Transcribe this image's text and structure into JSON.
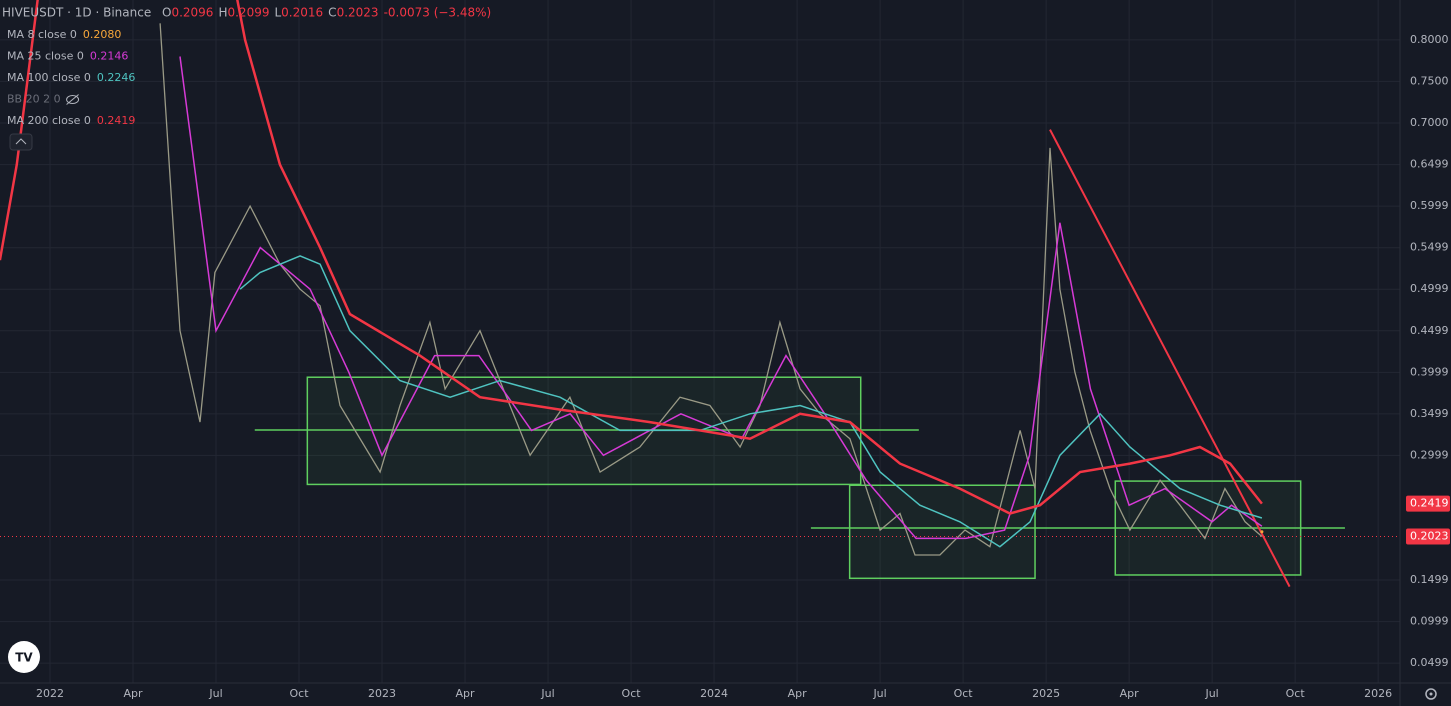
{
  "chart_data": {
    "type": "line",
    "title": "HIVEUSDT · 1D · Binance",
    "ohlc": [
      {
        "label": "O",
        "value": "0.2096"
      },
      {
        "label": "H",
        "value": "0.2099"
      },
      {
        "label": "L",
        "value": "0.2016"
      },
      {
        "label": "C",
        "value": "0.2023"
      }
    ],
    "change": "-0.0073 (−3.48%)",
    "close": 0.2023,
    "close_label": "0.2023",
    "extra_indicator": "BB 20 2 0",
    "price": {
      "color": "#9a9a86",
      "x": [
        3.98,
        4.7,
        5.42,
        5.96,
        7.23,
        8.31,
        9.04,
        9.76,
        10.48,
        11.93,
        12.65,
        13.73,
        14.28,
        15.54,
        16.62,
        17.35,
        18.79,
        19.88,
        21.32,
        22.77,
        23.85,
        24.94,
        25.66,
        26.38,
        27.11,
        27.83,
        28.91,
        30.0,
        30.72,
        31.26,
        32.16,
        33.07,
        33.97,
        35.06,
        35.6,
        36.14,
        36.5,
        37.04,
        37.59,
        38.31,
        39.03,
        40.12,
        40.84,
        41.74,
        42.46,
        43.19,
        43.8
      ],
      "values": [
        0.82,
        0.45,
        0.34,
        0.52,
        0.6,
        0.53,
        0.5,
        0.48,
        0.36,
        0.28,
        0.36,
        0.46,
        0.38,
        0.45,
        0.36,
        0.3,
        0.37,
        0.28,
        0.31,
        0.37,
        0.36,
        0.31,
        0.36,
        0.46,
        0.38,
        0.35,
        0.32,
        0.21,
        0.23,
        0.18,
        0.18,
        0.21,
        0.19,
        0.33,
        0.26,
        0.67,
        0.5,
        0.4,
        0.33,
        0.26,
        0.21,
        0.27,
        0.24,
        0.2,
        0.26,
        0.22,
        0.2023
      ]
    },
    "series": [
      {
        "name": "MA 8 close 0",
        "color": "#f7a73a",
        "last_label": "0.2080",
        "x": [
          43.8
        ],
        "values": [
          0.208
        ]
      },
      {
        "name": "MA 25 close 0",
        "color": "#d63ad6",
        "last_label": "0.2146",
        "x": [
          4.7,
          6.0,
          7.6,
          9.4,
          10.8,
          12.0,
          13.9,
          15.5,
          17.4,
          18.8,
          20.0,
          22.8,
          25.0,
          26.6,
          28.0,
          29.5,
          31.3,
          33.1,
          34.5,
          35.4,
          36.5,
          37.6,
          39.0,
          40.3,
          42.0,
          42.7,
          43.8
        ],
        "values": [
          0.78,
          0.45,
          0.55,
          0.5,
          0.4,
          0.3,
          0.42,
          0.42,
          0.33,
          0.35,
          0.3,
          0.35,
          0.32,
          0.42,
          0.35,
          0.27,
          0.2,
          0.2,
          0.21,
          0.3,
          0.58,
          0.38,
          0.24,
          0.26,
          0.22,
          0.24,
          0.2146
        ]
      },
      {
        "name": "MA 100 close 0",
        "color": "#4fc3c0",
        "last_label": "0.2246",
        "x": [
          6.87,
          7.59,
          9.04,
          9.76,
          10.84,
          12.65,
          14.46,
          16.26,
          18.43,
          20.6,
          23.49,
          25.3,
          27.11,
          28.91,
          30.0,
          31.44,
          32.88,
          34.33,
          35.42,
          36.5,
          37.95,
          39.03,
          40.84,
          42.29,
          43.8
        ],
        "values": [
          0.5,
          0.52,
          0.54,
          0.53,
          0.45,
          0.39,
          0.37,
          0.39,
          0.37,
          0.33,
          0.33,
          0.35,
          0.36,
          0.34,
          0.28,
          0.24,
          0.22,
          0.19,
          0.22,
          0.3,
          0.35,
          0.31,
          0.26,
          0.24,
          0.2246
        ]
      },
      {
        "name": "MA 200 close 0",
        "color": "#f23645",
        "last_label": "0.2419",
        "tag": true,
        "x": [
          -1.81,
          -1.2,
          -0.4,
          3.0,
          6.7,
          7.05,
          8.31,
          9.76,
          10.84,
          13.37,
          15.54,
          18.43,
          21.68,
          25.3,
          27.11,
          28.91,
          30.72,
          32.88,
          34.69,
          35.78,
          37.23,
          39.03,
          40.48,
          41.56,
          42.65,
          43.8
        ],
        "values": [
          0.535,
          0.65,
          0.86,
          null,
          0.86,
          0.8,
          0.65,
          0.55,
          0.47,
          0.42,
          0.37,
          0.355,
          0.34,
          0.32,
          0.35,
          0.34,
          0.29,
          0.26,
          0.23,
          0.24,
          0.28,
          0.29,
          0.3,
          0.31,
          0.29,
          0.2419
        ]
      }
    ],
    "boxes": [
      {
        "x": [
          9.3,
          29.3
        ],
        "y": [
          0.265,
          0.394
        ]
      },
      {
        "x": [
          28.9,
          35.6
        ],
        "y": [
          0.152,
          0.264
        ]
      },
      {
        "x": [
          38.5,
          45.2
        ],
        "y": [
          0.156,
          0.269
        ]
      }
    ],
    "hlines": [
      {
        "x": [
          7.4,
          31.4
        ],
        "y": 0.3305
      },
      {
        "x": [
          27.5,
          46.8
        ],
        "y": 0.2125
      }
    ],
    "trendline": {
      "x": [
        36.14,
        44.8
      ],
      "y": [
        0.692,
        0.142
      ]
    },
    "xlim": [
      -1.807,
      48.79
    ],
    "xticks": [
      {
        "value": 0,
        "label": "2022"
      },
      {
        "value": 3,
        "label": "Apr"
      },
      {
        "value": 6,
        "label": "Jul"
      },
      {
        "value": 9,
        "label": "Oct"
      },
      {
        "value": 12,
        "label": "2023"
      },
      {
        "value": 15,
        "label": "Apr"
      },
      {
        "value": 18,
        "label": "Jul"
      },
      {
        "value": 21,
        "label": "Oct"
      },
      {
        "value": 24,
        "label": "2024"
      },
      {
        "value": 27,
        "label": "Apr"
      },
      {
        "value": 30,
        "label": "Jul"
      },
      {
        "value": 33,
        "label": "Oct"
      },
      {
        "value": 36,
        "label": "2025"
      },
      {
        "value": 39,
        "label": "Apr"
      },
      {
        "value": 42,
        "label": "Jul"
      },
      {
        "value": 45,
        "label": "Oct"
      },
      {
        "value": 48,
        "label": "2026"
      }
    ],
    "ylim": [
      0.026,
      0.848
    ],
    "yticks": [
      {
        "value": 0.8,
        "label": "0.8000"
      },
      {
        "value": 0.75,
        "label": "0.7500"
      },
      {
        "value": 0.7,
        "label": "0.7000"
      },
      0.6499,
      0.5999,
      0.5499,
      0.4999,
      0.4499,
      0.3999,
      0.3499,
      0.2999,
      0.1499,
      0.0999,
      0.0499
    ],
    "grid": true
  }
}
